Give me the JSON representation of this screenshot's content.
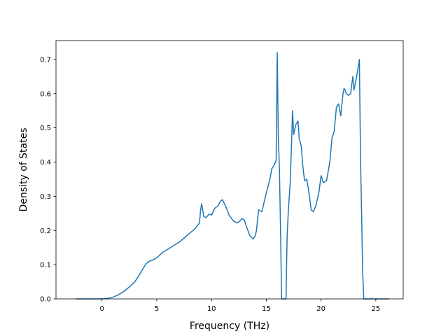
{
  "chart_data": {
    "type": "line",
    "title": "",
    "xlabel": "Frequency (THz)",
    "ylabel": "Density of States",
    "xlim": [
      -4.2,
      27.5
    ],
    "ylim": [
      0.0,
      0.755
    ],
    "xticks": [
      0,
      5,
      10,
      15,
      20,
      25
    ],
    "yticks": [
      0.0,
      0.1,
      0.2,
      0.3,
      0.4,
      0.5,
      0.6,
      0.7
    ],
    "xtick_labels": [
      "0",
      "5",
      "10",
      "15",
      "20",
      "25"
    ],
    "ytick_labels": [
      "0.0",
      "0.1",
      "0.2",
      "0.3",
      "0.4",
      "0.5",
      "0.6",
      "0.7"
    ],
    "grid": false,
    "legend": "none",
    "series": [
      {
        "color": "#1f77b4",
        "x": [
          -2.4,
          -1.5,
          -0.5,
          0.0,
          0.5,
          1.0,
          1.5,
          2.0,
          2.5,
          3.0,
          3.5,
          4.0,
          4.3,
          4.6,
          5.0,
          5.5,
          6.0,
          6.5,
          7.0,
          7.5,
          8.0,
          8.5,
          8.9,
          9.0,
          9.1,
          9.3,
          9.5,
          9.8,
          10.0,
          10.3,
          10.6,
          10.8,
          11.0,
          11.3,
          11.6,
          12.0,
          12.3,
          12.5,
          12.8,
          13.0,
          13.2,
          13.5,
          13.8,
          14.0,
          14.1,
          14.3,
          14.6,
          15.0,
          15.3,
          15.5,
          15.7,
          15.9,
          16.0,
          16.1,
          16.2,
          16.3,
          16.4,
          16.8,
          16.9,
          17.0,
          17.2,
          17.4,
          17.5,
          17.7,
          17.9,
          18.0,
          18.2,
          18.3,
          18.4,
          18.5,
          18.7,
          18.9,
          19.1,
          19.3,
          19.5,
          19.8,
          20.0,
          20.2,
          20.5,
          20.8,
          21.0,
          21.2,
          21.4,
          21.6,
          21.8,
          22.0,
          22.1,
          22.2,
          22.3,
          22.5,
          22.7,
          22.9,
          23.0,
          23.1,
          23.3,
          23.5,
          23.6,
          23.8,
          23.9,
          24.2,
          25.0,
          26.2
        ],
        "y": [
          0.0,
          0.0,
          0.0,
          0.0,
          0.0015,
          0.005,
          0.012,
          0.022,
          0.035,
          0.05,
          0.075,
          0.102,
          0.11,
          0.113,
          0.12,
          0.135,
          0.145,
          0.155,
          0.165,
          0.178,
          0.192,
          0.205,
          0.222,
          0.26,
          0.278,
          0.24,
          0.238,
          0.248,
          0.245,
          0.265,
          0.272,
          0.285,
          0.29,
          0.27,
          0.245,
          0.228,
          0.222,
          0.225,
          0.235,
          0.23,
          0.21,
          0.185,
          0.175,
          0.185,
          0.2,
          0.26,
          0.255,
          0.31,
          0.345,
          0.38,
          0.39,
          0.405,
          0.72,
          0.47,
          0.38,
          0.2,
          0.0,
          0.0,
          0.18,
          0.25,
          0.35,
          0.55,
          0.48,
          0.51,
          0.52,
          0.47,
          0.445,
          0.4,
          0.37,
          0.345,
          0.35,
          0.31,
          0.26,
          0.255,
          0.27,
          0.31,
          0.36,
          0.34,
          0.345,
          0.4,
          0.47,
          0.49,
          0.56,
          0.57,
          0.535,
          0.6,
          0.615,
          0.61,
          0.6,
          0.595,
          0.6,
          0.65,
          0.61,
          0.625,
          0.66,
          0.7,
          0.42,
          0.08,
          0.0,
          0.0,
          0.0,
          0.0
        ]
      }
    ]
  }
}
